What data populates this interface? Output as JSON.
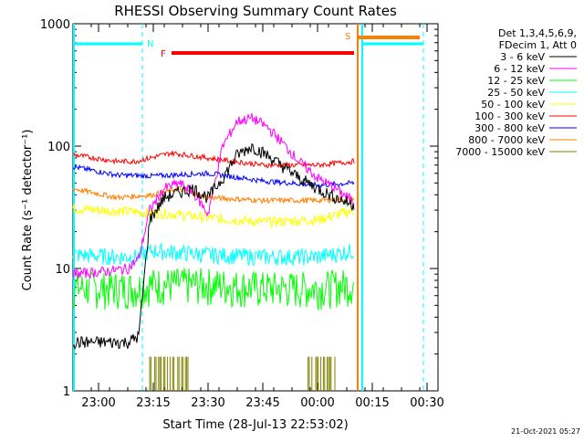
{
  "chart_data": {
    "type": "line",
    "title": "RHESSI Observing Summary Count Rates",
    "xlabel": "Start Time (28-Jul-13 22:53:02)",
    "ylabel": "Count Rate (s⁻¹ detector⁻¹)",
    "y_scale": "log",
    "ylim": [
      1,
      1000
    ],
    "xlim": [
      "22:53",
      "00:33"
    ],
    "x_ticks": [
      "23:00",
      "23:15",
      "23:30",
      "23:45",
      "00:00",
      "00:15",
      "00:30"
    ],
    "y_ticks": [
      "1",
      "10",
      "100",
      "1000"
    ],
    "legend_title": [
      "Det 1,3,4,5,6,9,",
      "FDecim 1, Att 0"
    ],
    "legend_position": "right",
    "timestamp": "21-Oct-2021 05:27",
    "series": [
      {
        "name": "3 - 6 keV",
        "color": "#000000",
        "x": [
          "22:53",
          "23:02",
          "23:08",
          "23:11",
          "23:14",
          "23:18",
          "23:22",
          "23:26",
          "23:30",
          "23:34",
          "23:38",
          "23:42",
          "23:46",
          "23:50",
          "23:55",
          "00:00",
          "00:05",
          "00:10"
        ],
        "y": [
          2.5,
          2.5,
          2.5,
          2.8,
          25,
          38,
          42,
          45,
          38,
          55,
          85,
          100,
          85,
          70,
          55,
          45,
          38,
          33
        ]
      },
      {
        "name": "6 - 12 keV",
        "color": "#ff00ff",
        "x": [
          "22:53",
          "23:02",
          "23:08",
          "23:11",
          "23:14",
          "23:18",
          "23:22",
          "23:26",
          "23:30",
          "23:34",
          "23:38",
          "23:42",
          "23:46",
          "23:50",
          "23:55",
          "00:00",
          "00:05",
          "00:10"
        ],
        "y": [
          9,
          9.5,
          10,
          12,
          30,
          45,
          50,
          42,
          28,
          100,
          160,
          170,
          145,
          110,
          75,
          55,
          45,
          35
        ]
      },
      {
        "name": "12 - 25 keV",
        "color": "#00ff00",
        "x": [
          "22:53",
          "23:10",
          "23:15",
          "23:30",
          "23:45",
          "00:00",
          "00:10"
        ],
        "y": [
          7,
          7,
          7.5,
          7.5,
          7,
          7,
          7.5
        ]
      },
      {
        "name": "25 - 50 keV",
        "color": "#00ffff",
        "x": [
          "22:53",
          "23:05",
          "23:10",
          "23:15",
          "23:30",
          "23:45",
          "00:00",
          "00:10"
        ],
        "y": [
          13,
          12.5,
          12.5,
          14,
          13,
          12.5,
          12.5,
          14
        ]
      },
      {
        "name": "50 - 100 keV",
        "color": "#ffff00",
        "x": [
          "22:53",
          "23:10",
          "23:20",
          "23:30",
          "23:45",
          "00:00",
          "00:10"
        ],
        "y": [
          31,
          29,
          28,
          26,
          24,
          25,
          30
        ]
      },
      {
        "name": "100 - 300 keV",
        "color": "#ff0000",
        "x": [
          "22:53",
          "23:05",
          "23:10",
          "23:20",
          "23:30",
          "23:45",
          "00:00",
          "00:10"
        ],
        "y": [
          85,
          75,
          75,
          88,
          80,
          70,
          70,
          75
        ]
      },
      {
        "name": "300 - 800 keV",
        "color": "#0000ff",
        "x": [
          "22:53",
          "23:05",
          "23:15",
          "23:30",
          "23:45",
          "00:00",
          "00:10"
        ],
        "y": [
          68,
          58,
          57,
          60,
          52,
          48,
          50
        ]
      },
      {
        "name": "800 - 7000 keV",
        "color": "#ff7f00",
        "x": [
          "22:53",
          "23:05",
          "23:15",
          "23:22",
          "23:30",
          "23:45",
          "00:00",
          "00:10"
        ],
        "y": [
          45,
          38,
          40,
          45,
          38,
          36,
          36,
          37
        ]
      },
      {
        "name": "7000 - 15000 keV",
        "color": "#808000",
        "x": [
          "23:14",
          "23:22",
          "23:45",
          "00:05"
        ],
        "y": [
          1.9,
          1.9,
          1.9,
          1.9
        ]
      }
    ],
    "flags": {
      "N_label": "N",
      "F_label": "F",
      "S_label": "S",
      "night_intervals": [
        [
          "22:53",
          "23:12"
        ],
        [
          "00:12",
          "00:29"
        ]
      ],
      "flare_interval": [
        "23:20",
        "00:10"
      ],
      "saa_interval": [
        "00:11",
        "00:33"
      ]
    }
  }
}
